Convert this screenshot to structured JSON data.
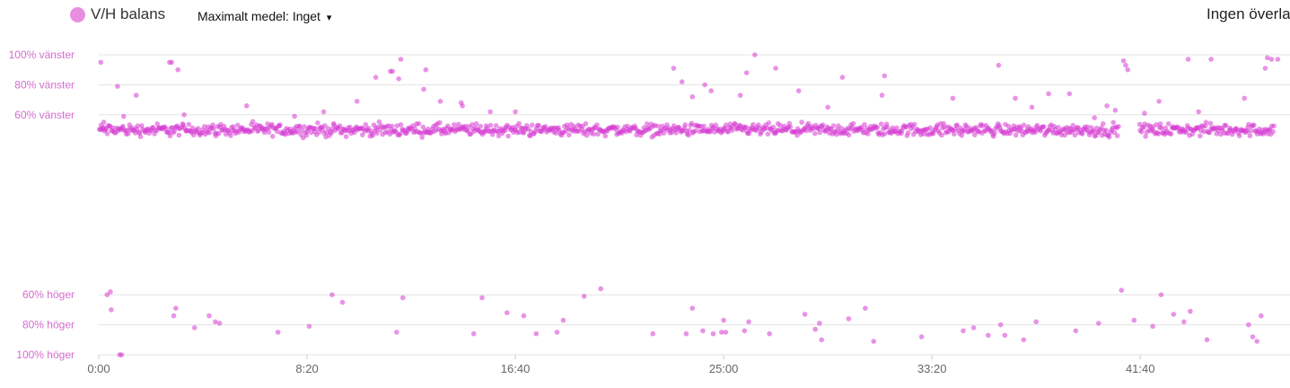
{
  "legend": {
    "label": "V/H balans",
    "color": "#e88ee0"
  },
  "max_avg": {
    "label": "Maximalt medel:",
    "value": "Inget",
    "caret": "▾"
  },
  "overlay": {
    "label": "Ingen överla"
  },
  "colors": {
    "dot": "#d63ad1",
    "tick_y": "#d56bcf",
    "grid": "#e3e3e3"
  },
  "chart_data": {
    "type": "scatter",
    "title": "",
    "xlabel": "",
    "ylabel": "",
    "xlim": [
      0,
      2840
    ],
    "ylim": [
      -100,
      100
    ],
    "grid": true,
    "legend": "top-left",
    "y_ticks": [
      {
        "value": 100,
        "label": "100% vänster"
      },
      {
        "value": 80,
        "label": "80% vänster"
      },
      {
        "value": 60,
        "label": "60% vänster"
      },
      {
        "value": -60,
        "label": "60% höger"
      },
      {
        "value": -80,
        "label": "80% höger"
      },
      {
        "value": -100,
        "label": "100% höger"
      }
    ],
    "x_ticks": [
      {
        "value": 0,
        "label": "0:00"
      },
      {
        "value": 500,
        "label": "8:20"
      },
      {
        "value": 1000,
        "label": "16:40"
      },
      {
        "value": 1500,
        "label": "25:00"
      },
      {
        "value": 2000,
        "label": "33:20"
      },
      {
        "value": 2500,
        "label": "41:40"
      }
    ],
    "series": [
      {
        "band": {
          "x_start": 0,
          "x_end": 2820,
          "y_center": 50,
          "y_spread": 4,
          "gaps": [
            [
              2450,
              2495
            ]
          ]
        },
        "outliers": [
          [
            5,
            95
          ],
          [
            10,
            51
          ],
          [
            12,
            55
          ],
          [
            20,
            -60
          ],
          [
            28,
            -58
          ],
          [
            30,
            -70
          ],
          [
            50,
            -100
          ],
          [
            55,
            -100
          ],
          [
            45,
            79
          ],
          [
            60,
            59
          ],
          [
            90,
            73
          ],
          [
            170,
            95
          ],
          [
            175,
            95
          ],
          [
            180,
            -74
          ],
          [
            185,
            -69
          ],
          [
            190,
            90
          ],
          [
            205,
            60
          ],
          [
            230,
            -82
          ],
          [
            265,
            -74
          ],
          [
            280,
            -78
          ],
          [
            290,
            -79
          ],
          [
            355,
            66
          ],
          [
            430,
            -85
          ],
          [
            470,
            59
          ],
          [
            505,
            -81
          ],
          [
            540,
            62
          ],
          [
            560,
            -60
          ],
          [
            585,
            -65
          ],
          [
            620,
            69
          ],
          [
            665,
            85
          ],
          [
            700,
            89
          ],
          [
            705,
            89
          ],
          [
            715,
            -85
          ],
          [
            720,
            84
          ],
          [
            725,
            97
          ],
          [
            730,
            -62
          ],
          [
            780,
            77
          ],
          [
            785,
            90
          ],
          [
            820,
            69
          ],
          [
            870,
            68
          ],
          [
            873,
            66
          ],
          [
            900,
            -86
          ],
          [
            920,
            -62
          ],
          [
            940,
            62
          ],
          [
            980,
            -72
          ],
          [
            1000,
            62
          ],
          [
            1020,
            -74
          ],
          [
            1050,
            -86
          ],
          [
            1100,
            -85
          ],
          [
            1115,
            -77
          ],
          [
            1165,
            -61
          ],
          [
            1205,
            -56
          ],
          [
            1330,
            -86
          ],
          [
            1380,
            91
          ],
          [
            1400,
            82
          ],
          [
            1410,
            -86
          ],
          [
            1425,
            72
          ],
          [
            1455,
            80
          ],
          [
            1470,
            76
          ],
          [
            1425,
            -69
          ],
          [
            1450,
            -84
          ],
          [
            1475,
            -86
          ],
          [
            1495,
            -85
          ],
          [
            1505,
            -85
          ],
          [
            1500,
            -77
          ],
          [
            1540,
            73
          ],
          [
            1555,
            88
          ],
          [
            1550,
            -84
          ],
          [
            1560,
            -78
          ],
          [
            1575,
            100
          ],
          [
            1610,
            -86
          ],
          [
            1625,
            91
          ],
          [
            1680,
            76
          ],
          [
            1695,
            -73
          ],
          [
            1720,
            -83
          ],
          [
            1735,
            -90
          ],
          [
            1730,
            -79
          ],
          [
            1750,
            65
          ],
          [
            1785,
            85
          ],
          [
            1800,
            -76
          ],
          [
            1840,
            -69
          ],
          [
            1860,
            -91
          ],
          [
            1880,
            73
          ],
          [
            1886,
            86
          ],
          [
            1975,
            -88
          ],
          [
            2050,
            71
          ],
          [
            2075,
            -84
          ],
          [
            2100,
            -82
          ],
          [
            2135,
            -87
          ],
          [
            2160,
            93
          ],
          [
            2165,
            -80
          ],
          [
            2175,
            -87
          ],
          [
            2200,
            71
          ],
          [
            2220,
            -90
          ],
          [
            2240,
            65
          ],
          [
            2250,
            -78
          ],
          [
            2280,
            74
          ],
          [
            2330,
            74
          ],
          [
            2345,
            -84
          ],
          [
            2390,
            58
          ],
          [
            2400,
            -79
          ],
          [
            2420,
            66
          ],
          [
            2440,
            63
          ],
          [
            2460,
            96
          ],
          [
            2470,
            90
          ],
          [
            2485,
            -77
          ],
          [
            2510,
            61
          ],
          [
            2530,
            -81
          ],
          [
            2545,
            69
          ],
          [
            2580,
            -73
          ],
          [
            2605,
            -78
          ],
          [
            2615,
            97
          ],
          [
            2620,
            -71
          ],
          [
            2640,
            62
          ],
          [
            2660,
            -90
          ],
          [
            2670,
            97
          ],
          [
            2750,
            71
          ],
          [
            2760,
            -80
          ],
          [
            2770,
            -88
          ],
          [
            2780,
            -91
          ],
          [
            2790,
            -74
          ],
          [
            2800,
            91
          ],
          [
            2805,
            98
          ],
          [
            2815,
            97
          ],
          [
            2830,
            97
          ],
          [
            2455,
            -57
          ],
          [
            2465,
            93
          ],
          [
            2550,
            -60
          ]
        ]
      }
    ]
  }
}
